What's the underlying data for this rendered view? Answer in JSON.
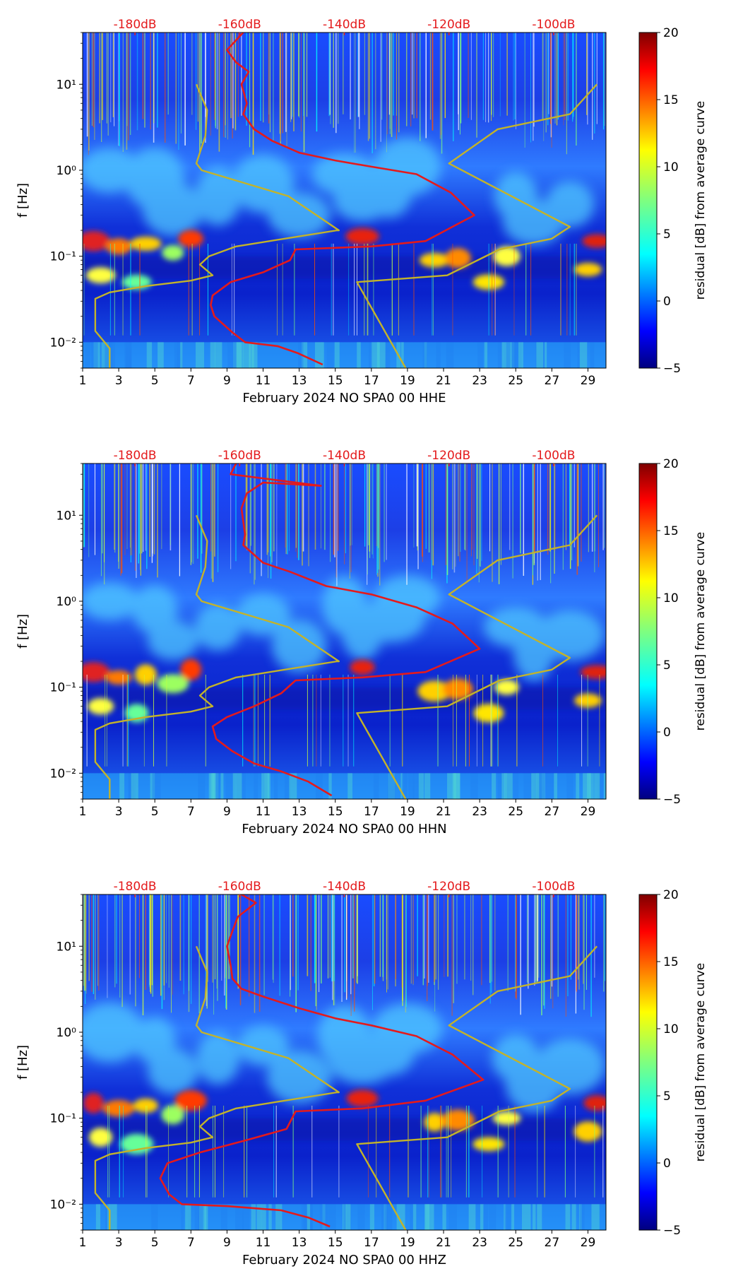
{
  "figure": {
    "panels_count": 3,
    "colormap": "jet",
    "reference_line_colors": {
      "red": "#e41a1c",
      "olive": "#c3b32a"
    }
  },
  "chart_data": [
    {
      "type": "heatmap",
      "title": "",
      "xlabel": "February 2024 NO SPA0 00 HHE",
      "ylabel": "f [Hz]",
      "x_ticks": [
        "1",
        "3",
        "5",
        "7",
        "9",
        "11",
        "13",
        "15",
        "17",
        "19",
        "21",
        "23",
        "25",
        "27",
        "29"
      ],
      "x_range": [
        1,
        30
      ],
      "y_ticks": [
        "10⁻²",
        "10⁻¹",
        "10⁰",
        "10¹"
      ],
      "y_range_hz": [
        0.005,
        40
      ],
      "top_axis_labels": [
        "-180dB",
        "-160dB",
        "-140dB",
        "-120dB",
        "-100dB"
      ],
      "colorbar": {
        "label": "residual [dB] from average curve",
        "ticks": [
          "20",
          "15",
          "10",
          "5",
          "0",
          "−5"
        ],
        "range": [
          -5,
          20
        ]
      },
      "series": [
        {
          "name": "red-psd",
          "color": "#e41a1c",
          "points": [
            [
              9.9,
              40
            ],
            [
              9.0,
              25
            ],
            [
              9.5,
              18
            ],
            [
              10.2,
              14
            ],
            [
              9.8,
              10
            ],
            [
              10.1,
              6
            ],
            [
              9.9,
              4.5
            ],
            [
              10.5,
              3
            ],
            [
              11.5,
              2.2
            ],
            [
              13,
              1.6
            ],
            [
              15,
              1.3
            ],
            [
              17,
              1.1
            ],
            [
              19.5,
              0.9
            ],
            [
              21.4,
              0.55
            ],
            [
              22.7,
              0.3
            ],
            [
              20,
              0.15
            ],
            [
              17,
              0.13
            ],
            [
              12.8,
              0.12
            ],
            [
              12.5,
              0.09
            ],
            [
              11,
              0.065
            ],
            [
              9.2,
              0.05
            ],
            [
              8.2,
              0.035
            ],
            [
              8.1,
              0.027
            ],
            [
              8.3,
              0.02
            ],
            [
              9.3,
              0.013
            ],
            [
              10,
              0.01
            ],
            [
              11.8,
              0.009
            ],
            [
              12.9,
              0.0075
            ],
            [
              14.3,
              0.0055
            ]
          ]
        },
        {
          "name": "olive-noise-model",
          "color": "#c3b32a",
          "points": [
            [
              2.5,
              0.005
            ],
            [
              2.5,
              0.0085
            ],
            [
              1.7,
              0.0135
            ],
            [
              1.7,
              0.032
            ],
            [
              2.5,
              0.038
            ],
            [
              4.5,
              0.045
            ],
            [
              7,
              0.052
            ],
            [
              8.2,
              0.06
            ],
            [
              7.5,
              0.08
            ],
            [
              8,
              0.1
            ],
            [
              9.5,
              0.13
            ],
            [
              15.1,
              0.2
            ],
            [
              15.2,
              0.2
            ],
            [
              12.4,
              0.5
            ],
            [
              7.6,
              1.0
            ],
            [
              7.3,
              1.2
            ],
            [
              7.8,
              2.5
            ],
            [
              7.9,
              5
            ],
            [
              7.3,
              10
            ]
          ]
        },
        {
          "name": "olive-high-noise-model",
          "color": "#c3b32a",
          "points": [
            [
              18.9,
              0.005
            ],
            [
              16.2,
              0.05
            ],
            [
              21.2,
              0.06
            ],
            [
              24.1,
              0.12
            ],
            [
              27,
              0.16
            ],
            [
              28,
              0.22
            ],
            [
              21.3,
              1.2
            ],
            [
              24,
              3
            ],
            [
              28,
              4.5
            ],
            [
              29.5,
              10
            ]
          ]
        }
      ]
    },
    {
      "type": "heatmap",
      "title": "",
      "xlabel": "February 2024 NO SPA0 00 HHN",
      "ylabel": "f [Hz]",
      "x_ticks": [
        "1",
        "3",
        "5",
        "7",
        "9",
        "11",
        "13",
        "15",
        "17",
        "19",
        "21",
        "23",
        "25",
        "27",
        "29"
      ],
      "x_range": [
        1,
        30
      ],
      "y_ticks": [
        "10⁻²",
        "10⁻¹",
        "10⁰",
        "10¹"
      ],
      "y_range_hz": [
        0.005,
        40
      ],
      "top_axis_labels": [
        "-180dB",
        "-160dB",
        "-140dB",
        "-120dB",
        "-100dB"
      ],
      "colorbar": {
        "label": "residual [dB] from average curve",
        "ticks": [
          "20",
          "15",
          "10",
          "5",
          "0",
          "−5"
        ],
        "range": [
          -5,
          20
        ]
      },
      "series": [
        {
          "name": "red-psd",
          "color": "#e41a1c",
          "points": [
            [
              9.5,
              40
            ],
            [
              9.2,
              30
            ],
            [
              14.2,
              22
            ],
            [
              11,
              24
            ],
            [
              10.1,
              18
            ],
            [
              9.8,
              12
            ],
            [
              10,
              6
            ],
            [
              9.9,
              4.5
            ],
            [
              11,
              2.8
            ],
            [
              12.5,
              2.2
            ],
            [
              14.5,
              1.5
            ],
            [
              17,
              1.2
            ],
            [
              19.5,
              0.85
            ],
            [
              21.5,
              0.55
            ],
            [
              23,
              0.28
            ],
            [
              20,
              0.15
            ],
            [
              16.5,
              0.13
            ],
            [
              12.8,
              0.12
            ],
            [
              12,
              0.085
            ],
            [
              10.5,
              0.06
            ],
            [
              9,
              0.045
            ],
            [
              8.2,
              0.035
            ],
            [
              8.4,
              0.025
            ],
            [
              9.3,
              0.018
            ],
            [
              10.5,
              0.013
            ],
            [
              12,
              0.0105
            ],
            [
              13.5,
              0.008
            ],
            [
              14.8,
              0.0055
            ]
          ]
        },
        {
          "name": "olive-noise-model",
          "color": "#c3b32a",
          "points": [
            [
              2.5,
              0.005
            ],
            [
              2.5,
              0.0085
            ],
            [
              1.7,
              0.0135
            ],
            [
              1.7,
              0.032
            ],
            [
              2.5,
              0.038
            ],
            [
              4.5,
              0.045
            ],
            [
              7,
              0.052
            ],
            [
              8.2,
              0.06
            ],
            [
              7.5,
              0.08
            ],
            [
              8,
              0.1
            ],
            [
              9.5,
              0.13
            ],
            [
              15.1,
              0.2
            ],
            [
              15.2,
              0.2
            ],
            [
              12.4,
              0.5
            ],
            [
              7.6,
              1.0
            ],
            [
              7.3,
              1.2
            ],
            [
              7.8,
              2.5
            ],
            [
              7.9,
              5
            ],
            [
              7.3,
              10
            ]
          ]
        },
        {
          "name": "olive-high-noise-model",
          "color": "#c3b32a",
          "points": [
            [
              18.9,
              0.005
            ],
            [
              16.2,
              0.05
            ],
            [
              21.2,
              0.06
            ],
            [
              24.1,
              0.12
            ],
            [
              27,
              0.16
            ],
            [
              28,
              0.22
            ],
            [
              21.3,
              1.2
            ],
            [
              24,
              3
            ],
            [
              28,
              4.5
            ],
            [
              29.5,
              10
            ]
          ]
        }
      ]
    },
    {
      "type": "heatmap",
      "title": "",
      "xlabel": "February 2024 NO SPA0 00 HHZ",
      "ylabel": "f [Hz]",
      "x_ticks": [
        "1",
        "3",
        "5",
        "7",
        "9",
        "11",
        "13",
        "15",
        "17",
        "19",
        "21",
        "23",
        "25",
        "27",
        "29"
      ],
      "x_range": [
        1,
        30
      ],
      "y_ticks": [
        "10⁻²",
        "10⁻¹",
        "10⁰",
        "10¹"
      ],
      "y_range_hz": [
        0.005,
        40
      ],
      "top_axis_labels": [
        "-180dB",
        "-160dB",
        "-140dB",
        "-120dB",
        "-100dB"
      ],
      "colorbar": {
        "label": "residual [dB] from average curve",
        "ticks": [
          "20",
          "15",
          "10",
          "5",
          "0",
          "−5"
        ],
        "range": [
          -5,
          20
        ]
      },
      "series": [
        {
          "name": "red-psd",
          "color": "#e41a1c",
          "points": [
            [
              9.8,
              40
            ],
            [
              10.6,
              32
            ],
            [
              9.6,
              22
            ],
            [
              9.3,
              15
            ],
            [
              9.0,
              10
            ],
            [
              9.2,
              6
            ],
            [
              9.3,
              4.2
            ],
            [
              9.8,
              3.2
            ],
            [
              11,
              2.6
            ],
            [
              13,
              1.9
            ],
            [
              15,
              1.45
            ],
            [
              17,
              1.2
            ],
            [
              19.5,
              0.9
            ],
            [
              21.5,
              0.55
            ],
            [
              23.2,
              0.28
            ],
            [
              20,
              0.16
            ],
            [
              16.5,
              0.13
            ],
            [
              12.8,
              0.12
            ],
            [
              12.3,
              0.075
            ],
            [
              10,
              0.055
            ],
            [
              7.5,
              0.04
            ],
            [
              5.7,
              0.03
            ],
            [
              5.3,
              0.02
            ],
            [
              5.8,
              0.013
            ],
            [
              6.5,
              0.01
            ],
            [
              9,
              0.0095
            ],
            [
              12,
              0.0085
            ],
            [
              13.5,
              0.007
            ],
            [
              14.7,
              0.0055
            ]
          ]
        },
        {
          "name": "olive-noise-model",
          "color": "#c3b32a",
          "points": [
            [
              2.5,
              0.005
            ],
            [
              2.5,
              0.0085
            ],
            [
              1.7,
              0.0135
            ],
            [
              1.7,
              0.032
            ],
            [
              2.5,
              0.038
            ],
            [
              4.5,
              0.045
            ],
            [
              7,
              0.052
            ],
            [
              8.2,
              0.06
            ],
            [
              7.5,
              0.08
            ],
            [
              8,
              0.1
            ],
            [
              9.5,
              0.13
            ],
            [
              15.1,
              0.2
            ],
            [
              15.2,
              0.2
            ],
            [
              12.4,
              0.5
            ],
            [
              7.6,
              1.0
            ],
            [
              7.3,
              1.2
            ],
            [
              7.8,
              2.5
            ],
            [
              7.9,
              5
            ],
            [
              7.3,
              10
            ]
          ]
        },
        {
          "name": "olive-high-noise-model",
          "color": "#c3b32a",
          "points": [
            [
              18.9,
              0.005
            ],
            [
              16.2,
              0.05
            ],
            [
              21.2,
              0.06
            ],
            [
              24.1,
              0.12
            ],
            [
              27,
              0.16
            ],
            [
              28,
              0.22
            ],
            [
              21.3,
              1.2
            ],
            [
              24,
              3
            ],
            [
              28,
              4.5
            ],
            [
              29.5,
              10
            ]
          ]
        }
      ]
    }
  ]
}
